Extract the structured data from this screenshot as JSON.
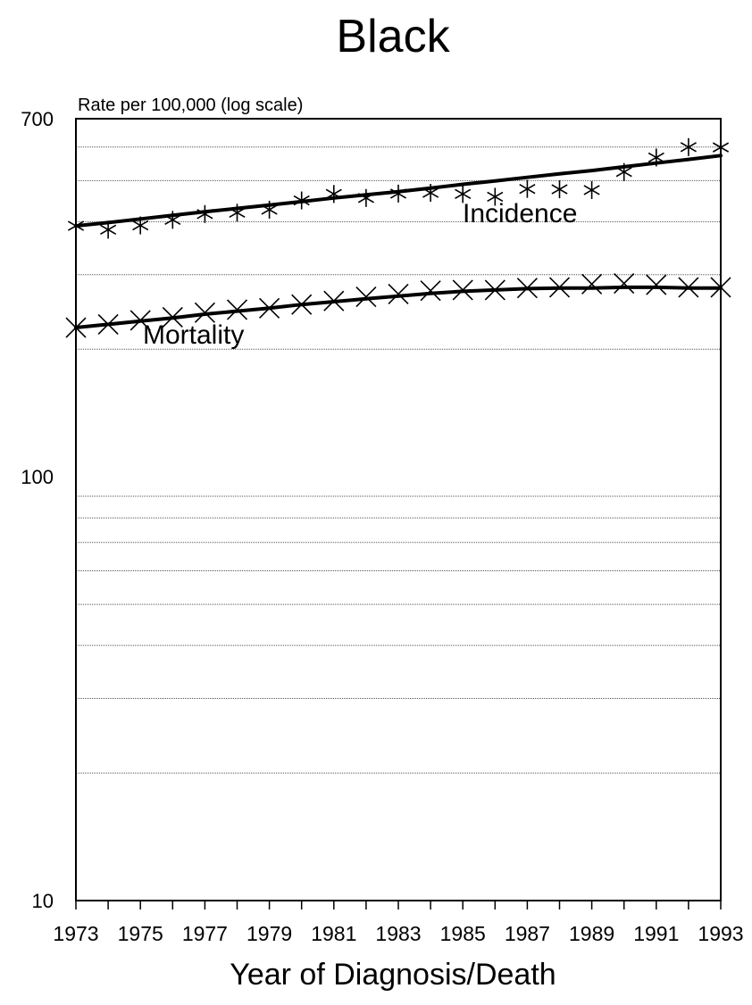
{
  "chart_data": {
    "type": "line",
    "title": "Black",
    "ylabel": "Rate per 100,000 (log scale)",
    "xlabel": "Year of Diagnosis/Death",
    "y_scale": "log",
    "ylim": [
      10,
      700
    ],
    "xlim": [
      1973,
      1993
    ],
    "y_tick_labels": [
      {
        "value": 700,
        "label": "700"
      },
      {
        "value": 100,
        "label": "100"
      },
      {
        "value": 10,
        "label": "10"
      }
    ],
    "x_tick_labels": [
      "1973",
      "1975",
      "1977",
      "1979",
      "1981",
      "1983",
      "1985",
      "1987",
      "1989",
      "1991",
      "1993"
    ],
    "gridlines": [
      600,
      500,
      400,
      300,
      200,
      90,
      80,
      70,
      60,
      50,
      40,
      30,
      20
    ],
    "grid": "horizontal dotted",
    "x": [
      1973,
      1974,
      1975,
      1976,
      1977,
      1978,
      1979,
      1980,
      1981,
      1982,
      1983,
      1984,
      1985,
      1986,
      1987,
      1988,
      1989,
      1990,
      1991,
      1992,
      1993
    ],
    "series": [
      {
        "name": "Incidence",
        "marker": "asterisk",
        "observed": [
          391,
          383,
          392,
          404,
          417,
          420,
          427,
          449,
          465,
          455,
          466,
          468,
          465,
          458,
          478,
          477,
          475,
          524,
          567,
          600,
          599
        ],
        "fitted": [
          391,
          398,
          406,
          414,
          422,
          430,
          438,
          446,
          455,
          463,
          471,
          480,
          490,
          499,
          509,
          519,
          528,
          539,
          550,
          561,
          573
        ]
      },
      {
        "name": "Mortality",
        "marker": "x",
        "observed": [
          225,
          229,
          234,
          238,
          244,
          248,
          250,
          255,
          260,
          266,
          270,
          275,
          276,
          276,
          279,
          280,
          285,
          286,
          284,
          280,
          280
        ],
        "fitted": [
          225,
          229,
          233,
          237,
          242,
          246,
          250,
          255,
          259,
          263,
          267,
          271,
          274,
          276,
          278,
          279,
          279,
          280,
          280,
          279,
          279
        ]
      }
    ]
  }
}
